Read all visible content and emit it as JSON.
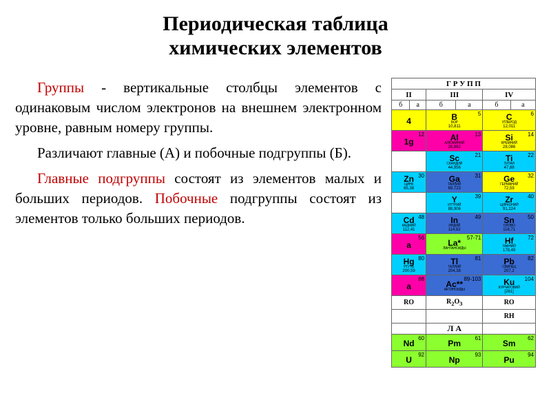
{
  "title_line1": "Периодическая таблица",
  "title_line2": "химических элементов",
  "paragraphs": {
    "p1_kw": "Группы",
    "p1_rest": " - вертикальные столбцы элементов с одинаковым числом электронов на внешнем электронном уровне, равным номеру группы.",
    "p2": "Различают главные (А) и побочные подгруппы (Б).",
    "p3_kw": "Главные подгруппы",
    "p3_rest": " состоят из элементов малых и больших периодов. ",
    "p3_kw2": "Побочные",
    "p3_rest2": " подгруппы состоят из элементов только больших периодов."
  },
  "colors": {
    "yellow": "#ffff00",
    "magenta": "#ff00a8",
    "cyan": "#00d0ff",
    "blue": "#3a6cd4",
    "lime": "#8cff2e",
    "white": "#ffffff",
    "gray": "#d8d8d8"
  },
  "header": {
    "top": "Г Р У П П",
    "groups": [
      "II",
      "III",
      "IV"
    ],
    "subs": [
      "б",
      "а",
      "б",
      "а",
      "б",
      "а"
    ]
  },
  "rows": [
    [
      {
        "s": "4",
        "n": "",
        "c": "yellow",
        "half": true
      },
      {
        "s": "B",
        "n": "5",
        "name": "БОР",
        "m": "10,811",
        "c": "yellow"
      },
      {
        "s": "C",
        "n": "6",
        "name": "УГЛЕРОД",
        "m": "12,011",
        "c": "yellow"
      }
    ],
    [
      {
        "s": "1g",
        "n": "12",
        "name": "",
        "m": "",
        "c": "magenta",
        "half": true
      },
      {
        "s": "Al",
        "n": "13",
        "name": "АЛЮМИНИЙ",
        "m": "26,982",
        "c": "magenta"
      },
      {
        "s": "Si",
        "n": "14",
        "name": "КРЕМНИЙ",
        "m": "28,086",
        "c": "yellow"
      }
    ],
    [
      {
        "s": "",
        "n": "",
        "c": "white",
        "half": true
      },
      {
        "s": "Sc",
        "n": "21",
        "name": "СКАНДИЙ",
        "m": "44,956",
        "c": "cyan",
        "sub": true
      },
      {
        "s": "Ti",
        "n": "22",
        "name": "ТИТАН",
        "m": "47,88",
        "c": "cyan",
        "sub": true
      }
    ],
    [
      {
        "s": "Zn",
        "n": "30",
        "name": "ЦИНК",
        "m": "65,38",
        "c": "cyan",
        "half": true,
        "sub": true
      },
      {
        "s": "Ga",
        "n": "31",
        "name": "ГАЛЛИЙ",
        "m": "69,723",
        "c": "blue"
      },
      {
        "s": "Ge",
        "n": "32",
        "name": "ГЕРМАНИЙ",
        "m": "72,59",
        "c": "yellow"
      }
    ],
    [
      {
        "s": "",
        "n": "",
        "c": "white",
        "half": true
      },
      {
        "s": "Y",
        "n": "39",
        "name": "ИТТРИЙ",
        "m": "88,906",
        "c": "cyan",
        "sub": true
      },
      {
        "s": "Zr",
        "n": "40",
        "name": "ЦИРКОНИЙ",
        "m": "91,224",
        "c": "cyan",
        "sub": true
      }
    ],
    [
      {
        "s": "Cd",
        "n": "48",
        "name": "КАДМИЙ",
        "m": "112,41",
        "c": "cyan",
        "half": true,
        "sub": true
      },
      {
        "s": "In",
        "n": "49",
        "name": "ИНДИЙ",
        "m": "114,82",
        "c": "blue"
      },
      {
        "s": "Sn",
        "n": "50",
        "name": "ОЛОВО",
        "m": "118,71",
        "c": "blue"
      }
    ],
    [
      {
        "s": "a",
        "n": "56",
        "name": "",
        "m": "",
        "c": "magenta",
        "half": true
      },
      {
        "s": "La*",
        "n": "57-71",
        "name": "ЛАНТАНОИДЫ",
        "m": "",
        "c": "lime",
        "sub": true
      },
      {
        "s": "Hf",
        "n": "72",
        "name": "ГАФНИЙ",
        "m": "178,49",
        "c": "cyan",
        "sub": true
      }
    ],
    [
      {
        "s": "Hg",
        "n": "80",
        "name": "РТУТЬ",
        "m": "200,59",
        "c": "cyan",
        "half": true,
        "sub": true
      },
      {
        "s": "Tl",
        "n": "81",
        "name": "ТАЛЛИЙ",
        "m": "204,38",
        "c": "blue"
      },
      {
        "s": "Pb",
        "n": "82",
        "name": "СВИНЕЦ",
        "m": "207,2",
        "c": "blue"
      }
    ],
    [
      {
        "s": "a",
        "n": "88",
        "name": "",
        "m": "",
        "c": "magenta",
        "half": true
      },
      {
        "s": "Ac**",
        "n": "89-103",
        "name": "АКТИНОИДЫ",
        "m": "",
        "c": "blue",
        "sub": true
      },
      {
        "s": "Ku",
        "n": "104",
        "name": "КУРЧАТОВИЙ",
        "m": "[261]",
        "c": "cyan",
        "sub": true
      }
    ]
  ],
  "oxides": [
    "RO",
    "R₂O₃",
    "RO"
  ],
  "hydrides": [
    "",
    "",
    "RH"
  ],
  "letters": [
    "",
    "Л А",
    ""
  ],
  "lanthanides": [
    {
      "s": "Nd",
      "n": "60",
      "c": "lime"
    },
    {
      "s": "Pm",
      "n": "61",
      "c": "lime"
    },
    {
      "s": "Sm",
      "n": "62",
      "c": "lime"
    }
  ],
  "actinides": [
    {
      "s": "U",
      "n": "92",
      "c": "lime"
    },
    {
      "s": "Np",
      "n": "93",
      "c": "lime"
    },
    {
      "s": "Pu",
      "n": "94",
      "c": "lime"
    }
  ]
}
